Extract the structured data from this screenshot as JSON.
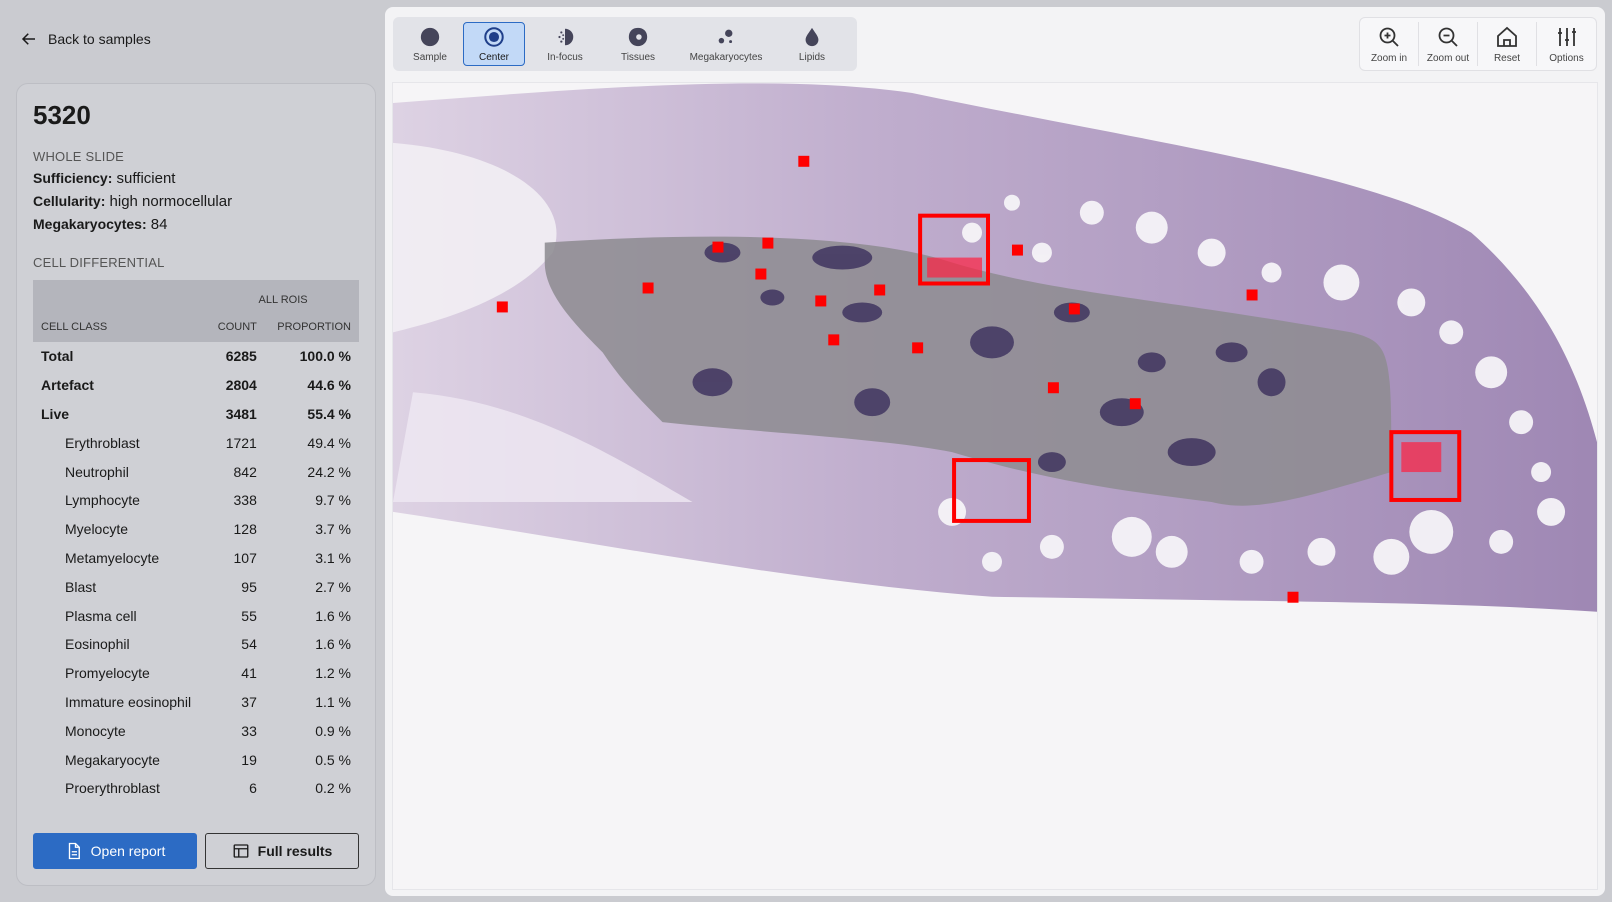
{
  "nav": {
    "back_label": "Back to samples",
    "back_icon": "arrow-left-icon"
  },
  "sample": {
    "id": "5320",
    "whole_slide_heading": "WHOLE SLIDE",
    "sufficiency_label": "Sufficiency:",
    "sufficiency_value": "sufficient",
    "cellularity_label": "Cellularity:",
    "cellularity_value": "high normocellular",
    "megakaryocytes_label": "Megakaryocytes:",
    "megakaryocytes_value": "84"
  },
  "cell_differential": {
    "heading": "CELL DIFFERENTIAL",
    "group_header": "ALL ROIS",
    "columns": [
      "CELL CLASS",
      "COUNT",
      "PROPORTION"
    ],
    "rows": [
      {
        "name": "Total",
        "count": "6285",
        "proportion": "100.0 %",
        "bold": true
      },
      {
        "name": "Artefact",
        "count": "2804",
        "proportion": "44.6 %",
        "bold": true
      },
      {
        "name": "Live",
        "count": "3481",
        "proportion": "55.4 %",
        "bold": true
      },
      {
        "name": "Erythroblast",
        "count": "1721",
        "proportion": "49.4 %"
      },
      {
        "name": "Neutrophil",
        "count": "842",
        "proportion": "24.2 %"
      },
      {
        "name": "Lymphocyte",
        "count": "338",
        "proportion": "9.7 %"
      },
      {
        "name": "Myelocyte",
        "count": "128",
        "proportion": "3.7 %"
      },
      {
        "name": "Metamyelocyte",
        "count": "107",
        "proportion": "3.1 %"
      },
      {
        "name": "Blast",
        "count": "95",
        "proportion": "2.7 %"
      },
      {
        "name": "Plasma cell",
        "count": "55",
        "proportion": "1.6 %"
      },
      {
        "name": "Eosinophil",
        "count": "54",
        "proportion": "1.6 %"
      },
      {
        "name": "Promyelocyte",
        "count": "41",
        "proportion": "1.2 %"
      },
      {
        "name": "Immature eosinophil",
        "count": "37",
        "proportion": "1.1 %"
      },
      {
        "name": "Monocyte",
        "count": "33",
        "proportion": "0.9 %"
      },
      {
        "name": "Megakaryocyte",
        "count": "19",
        "proportion": "0.5 %"
      },
      {
        "name": "Proerythroblast",
        "count": "6",
        "proportion": "0.2 %"
      }
    ]
  },
  "actions": {
    "open_report": "Open report",
    "full_results": "Full results"
  },
  "toolbar": {
    "tools": [
      {
        "label": "Sample",
        "icon": "filled-circle-icon",
        "active": false
      },
      {
        "label": "Center",
        "icon": "target-circle-icon",
        "active": true
      },
      {
        "label": "In-focus",
        "icon": "focus-icon",
        "active": false
      },
      {
        "label": "Tissues",
        "icon": "tissue-icon",
        "active": false
      },
      {
        "label": "Megakaryocytes",
        "icon": "cells-icon",
        "active": false
      },
      {
        "label": "Lipids",
        "icon": "drop-icon",
        "active": false
      }
    ],
    "zoom": {
      "zoom_in": "Zoom in",
      "zoom_out": "Zoom out",
      "reset": "Reset",
      "options": "Options"
    }
  },
  "colors": {
    "accent": "#2c6bc4",
    "roi": "#ff0000",
    "stain": "#9a7fb0"
  }
}
